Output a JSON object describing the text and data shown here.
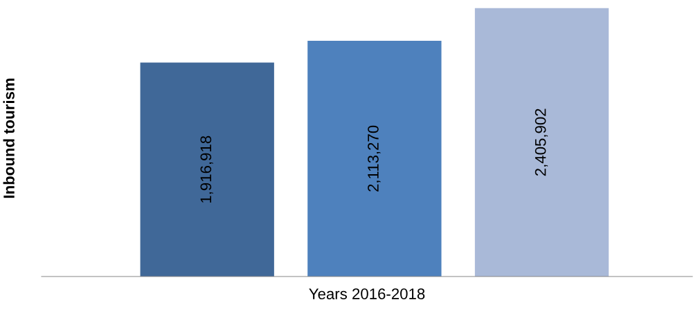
{
  "chart_data": {
    "type": "bar",
    "xlabel": "Years 2016-2018",
    "ylabel": "Inbound tourism",
    "categories": [
      null,
      null,
      null
    ],
    "values": [
      1916918,
      2113270,
      2405902
    ],
    "colors": [
      "#406898",
      "#4e81bd",
      "#a9b9d8"
    ],
    "value_labels": [
      "1,916,918",
      "2,113,270",
      "2,405,902"
    ],
    "tick_labels": false,
    "grid": false,
    "legend": false
  }
}
